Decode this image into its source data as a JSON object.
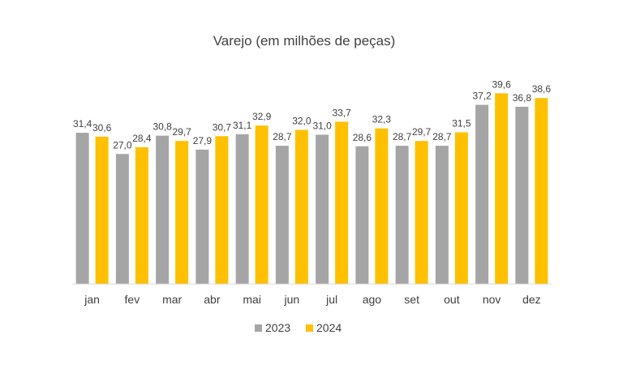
{
  "chart_data": {
    "type": "bar",
    "title": "Varejo (em milhões de peças)",
    "xlabel": "",
    "ylabel": "",
    "ylim": [
      0,
      42
    ],
    "grid": false,
    "legend_position": "bottom",
    "categories": [
      "jan",
      "fev",
      "mar",
      "abr",
      "mai",
      "jun",
      "jul",
      "ago",
      "set",
      "out",
      "nov",
      "dez"
    ],
    "series": [
      {
        "name": "2023",
        "color": "#a5a5a5",
        "values": [
          31.4,
          27.0,
          30.8,
          27.9,
          31.1,
          28.7,
          31.0,
          28.6,
          28.7,
          28.7,
          37.2,
          36.8
        ],
        "labels": [
          "31,4",
          "27,0",
          "30,8",
          "27,9",
          "31,1",
          "28,7",
          "31,0",
          "28,6",
          "28,7",
          "28,7",
          "37,2",
          "36,8"
        ]
      },
      {
        "name": "2024",
        "color": "#ffc000",
        "values": [
          30.6,
          28.4,
          29.7,
          30.7,
          32.9,
          32.0,
          33.7,
          32.3,
          29.7,
          31.5,
          39.6,
          38.6
        ],
        "labels": [
          "30,6",
          "28,4",
          "29,7",
          "30,7",
          "32,9",
          "32,0",
          "33,7",
          "32,3",
          "29,7",
          "31,5",
          "39,6",
          "38,6"
        ]
      }
    ]
  }
}
